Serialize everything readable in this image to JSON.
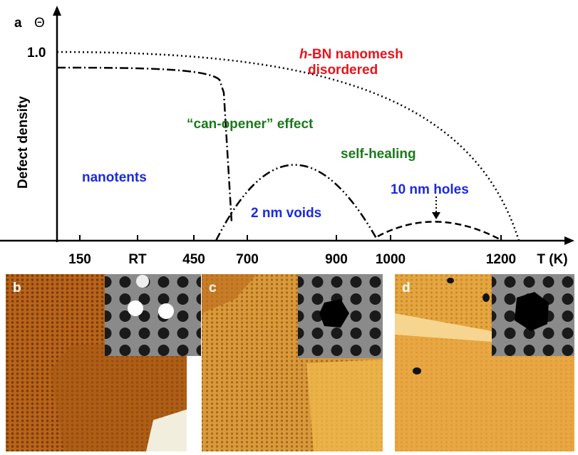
{
  "panel_a": {
    "label": "a",
    "y_symbol": "Θ",
    "y_axis_label": "Defect density",
    "y_tick": "1.0",
    "x_ticks": [
      "150",
      "RT",
      "450",
      "700",
      "900",
      "1000",
      "1200"
    ],
    "x_axis_label": "T (K)",
    "annotations": {
      "nanomesh_1": "h",
      "nanomesh_2": "-BN nanomesh",
      "disordered": "disordered",
      "can_opener": "“can-opener” effect",
      "self_healing": "self-healing",
      "nanotents": "nanotents",
      "holes": "10 nm holes",
      "voids": "2 nm voids"
    }
  },
  "panels": [
    "b",
    "c",
    "d"
  ]
}
